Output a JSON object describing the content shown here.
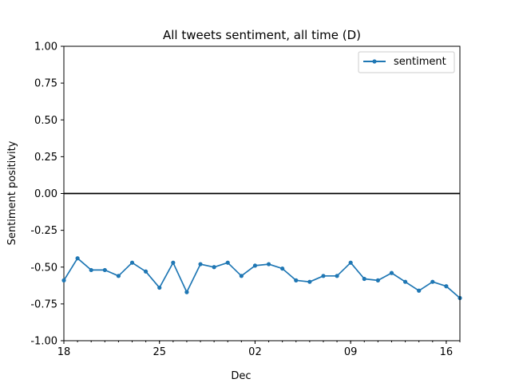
{
  "chart_data": {
    "type": "line",
    "title": "All tweets sentiment, all time (D)",
    "xlabel": "Dec",
    "ylabel": "Sentiment positivity",
    "ylim": [
      -1.0,
      1.0
    ],
    "xlim": [
      "2023-11-18",
      "2023-12-17"
    ],
    "y_ticks": [
      "1.00",
      "0.75",
      "0.50",
      "0.25",
      "0.00",
      "-0.25",
      "-0.50",
      "-0.75",
      "-1.00"
    ],
    "x_ticks": [
      {
        "date": "2023-11-18",
        "label": "18"
      },
      {
        "date": "2023-11-25",
        "label": "25"
      },
      {
        "date": "2023-12-02",
        "label": "02"
      },
      {
        "date": "2023-12-09",
        "label": "09"
      },
      {
        "date": "2023-12-16",
        "label": "16"
      }
    ],
    "reference_line": 0.0,
    "grid": false,
    "legend_position": "top-right",
    "colors": {
      "series": "#1f77b4",
      "reference": "#000000"
    },
    "series": [
      {
        "name": "sentiment",
        "x": [
          "2023-11-18",
          "2023-11-19",
          "2023-11-20",
          "2023-11-21",
          "2023-11-22",
          "2023-11-23",
          "2023-11-24",
          "2023-11-25",
          "2023-11-26",
          "2023-11-27",
          "2023-11-28",
          "2023-11-29",
          "2023-11-30",
          "2023-12-01",
          "2023-12-02",
          "2023-12-03",
          "2023-12-04",
          "2023-12-05",
          "2023-12-06",
          "2023-12-07",
          "2023-12-08",
          "2023-12-09",
          "2023-12-10",
          "2023-12-11",
          "2023-12-12",
          "2023-12-13",
          "2023-12-14",
          "2023-12-15",
          "2023-12-16",
          "2023-12-17"
        ],
        "values": [
          -0.59,
          -0.44,
          -0.52,
          -0.52,
          -0.56,
          -0.47,
          -0.53,
          -0.64,
          -0.47,
          -0.67,
          -0.48,
          -0.5,
          -0.47,
          -0.56,
          -0.49,
          -0.48,
          -0.51,
          -0.59,
          -0.6,
          -0.56,
          -0.56,
          -0.47,
          -0.58,
          -0.59,
          -0.54,
          -0.6,
          -0.66,
          -0.6,
          -0.63,
          -0.71
        ]
      }
    ]
  }
}
